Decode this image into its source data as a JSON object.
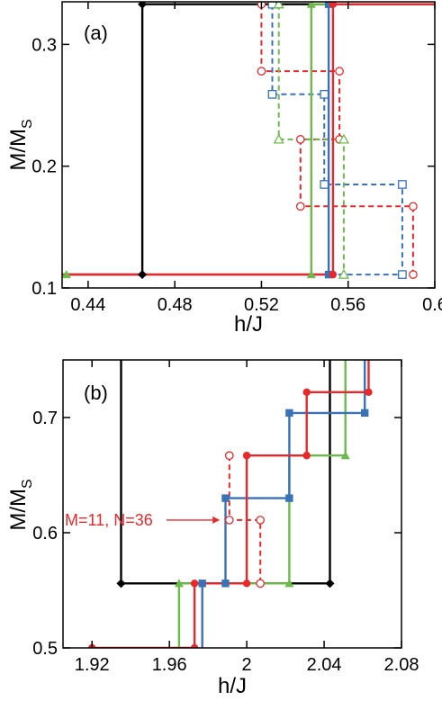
{
  "colors": {
    "black": "#000000",
    "red": "#e8282b",
    "green": "#6cba4a",
    "blue": "#3a72b8",
    "text": "#000000"
  },
  "chart_data": [
    {
      "type": "line",
      "panel_label": "(a)",
      "xlabel": "h/J",
      "ylabel": "M/M",
      "ylabel_sub": "S",
      "xlim": [
        0.428,
        0.6
      ],
      "ylim": [
        0.1,
        0.335
      ],
      "xticks": [
        0.44,
        0.48,
        0.52,
        0.56,
        0.6
      ],
      "xtick_labels": [
        "0.44",
        "0.48",
        "0.52",
        "0.56",
        "0.6"
      ],
      "yticks": [
        0.1,
        0.2,
        0.3
      ],
      "ytick_labels": [
        "0.1",
        "0.2",
        "0.3"
      ],
      "series": [
        {
          "color": "black",
          "dash": false,
          "marker": "diamond",
          "points": [
            [
              0.428,
              0.111
            ],
            [
              0.465,
              0.111
            ],
            [
              0.465,
              0.333
            ],
            [
              0.6,
              0.333
            ]
          ],
          "markers": [
            [
              0.465,
              0.111
            ],
            [
              0.465,
              0.333
            ]
          ]
        },
        {
          "color": "green",
          "dash": false,
          "marker": "triangle",
          "points": [
            [
              0.428,
              0.111
            ],
            [
              0.543,
              0.111
            ],
            [
              0.543,
              0.333
            ],
            [
              0.6,
              0.333
            ]
          ],
          "markers": [
            [
              0.43,
              0.111
            ],
            [
              0.543,
              0.111
            ],
            [
              0.543,
              0.333
            ]
          ]
        },
        {
          "color": "blue",
          "dash": false,
          "marker": "square",
          "points": [
            [
              0.428,
              0.111
            ],
            [
              0.551,
              0.111
            ],
            [
              0.551,
              0.333
            ],
            [
              0.6,
              0.333
            ]
          ],
          "markers": [
            [
              0.551,
              0.111
            ],
            [
              0.551,
              0.333
            ]
          ]
        },
        {
          "color": "red",
          "dash": false,
          "marker": "circle-filled",
          "points": [
            [
              0.428,
              0.111
            ],
            [
              0.553,
              0.111
            ],
            [
              0.553,
              0.333
            ],
            [
              0.6,
              0.333
            ]
          ],
          "markers": [
            [
              0.553,
              0.111
            ],
            [
              0.553,
              0.333
            ]
          ]
        },
        {
          "color": "red",
          "dash": true,
          "marker": "circle-open",
          "points": [
            [
              0.52,
              0.333
            ],
            [
              0.52,
              0.278
            ],
            [
              0.556,
              0.278
            ],
            [
              0.556,
              0.222
            ],
            [
              0.538,
              0.222
            ],
            [
              0.538,
              0.167
            ],
            [
              0.59,
              0.167
            ],
            [
              0.59,
              0.111
            ]
          ],
          "markers": [
            [
              0.52,
              0.333
            ],
            [
              0.52,
              0.278
            ],
            [
              0.556,
              0.278
            ],
            [
              0.556,
              0.222
            ],
            [
              0.538,
              0.222
            ],
            [
              0.538,
              0.167
            ],
            [
              0.59,
              0.167
            ],
            [
              0.59,
              0.111
            ]
          ]
        },
        {
          "color": "blue",
          "dash": true,
          "marker": "square-open",
          "points": [
            [
              0.525,
              0.333
            ],
            [
              0.525,
              0.259
            ],
            [
              0.549,
              0.259
            ],
            [
              0.549,
              0.185
            ],
            [
              0.585,
              0.185
            ],
            [
              0.585,
              0.111
            ],
            [
              0.553,
              0.111
            ]
          ],
          "markers": [
            [
              0.525,
              0.333
            ],
            [
              0.525,
              0.259
            ],
            [
              0.549,
              0.259
            ],
            [
              0.549,
              0.185
            ],
            [
              0.585,
              0.185
            ],
            [
              0.585,
              0.111
            ]
          ]
        },
        {
          "color": "green",
          "dash": true,
          "marker": "triangle-open",
          "points": [
            [
              0.528,
              0.333
            ],
            [
              0.528,
              0.222
            ],
            [
              0.558,
              0.222
            ],
            [
              0.558,
              0.111
            ]
          ],
          "markers": [
            [
              0.528,
              0.333
            ],
            [
              0.528,
              0.222
            ],
            [
              0.558,
              0.222
            ],
            [
              0.558,
              0.111
            ]
          ]
        }
      ]
    },
    {
      "type": "line",
      "panel_label": "(b)",
      "xlabel": "h/J",
      "ylabel": "M/M",
      "ylabel_sub": "S",
      "xlim": [
        1.905,
        2.08
      ],
      "ylim": [
        0.5,
        0.75
      ],
      "xticks": [
        1.92,
        1.96,
        2,
        2.04,
        2.08
      ],
      "xtick_labels": [
        "1.92",
        "1.96",
        "2",
        "2.04",
        "2.08"
      ],
      "yticks": [
        0.5,
        0.6,
        0.7
      ],
      "ytick_labels": [
        "0.5",
        "0.6",
        "0.7"
      ],
      "annotation": {
        "text": "M=11, N=36",
        "x": 1.905,
        "y": 0.611,
        "arrow_to": [
          1.987,
          0.611
        ]
      },
      "series": [
        {
          "color": "black",
          "dash": false,
          "marker": "diamond",
          "points": [
            [
              1.935,
              0.75
            ],
            [
              1.935,
              0.556
            ],
            [
              2.043,
              0.556
            ],
            [
              2.043,
              0.75
            ]
          ],
          "markers": [
            [
              1.935,
              0.556
            ],
            [
              2.043,
              0.556
            ]
          ]
        },
        {
          "color": "green",
          "dash": false,
          "marker": "triangle",
          "points": [
            [
              1.965,
              0.5
            ],
            [
              1.965,
              0.556
            ],
            [
              2.022,
              0.556
            ],
            [
              2.022,
              0.667
            ],
            [
              2.051,
              0.667
            ],
            [
              2.051,
              0.75
            ]
          ],
          "markers": [
            [
              1.965,
              0.556
            ],
            [
              2.022,
              0.556
            ],
            [
              2.051,
              0.667
            ]
          ]
        },
        {
          "color": "blue",
          "dash": false,
          "marker": "square",
          "points": [
            [
              1.977,
              0.5
            ],
            [
              1.977,
              0.556
            ],
            [
              1.989,
              0.556
            ],
            [
              1.989,
              0.63
            ],
            [
              2.022,
              0.63
            ],
            [
              2.022,
              0.704
            ],
            [
              2.061,
              0.704
            ],
            [
              2.061,
              0.75
            ]
          ],
          "markers": [
            [
              1.977,
              0.556
            ],
            [
              1.989,
              0.556
            ],
            [
              1.989,
              0.63
            ],
            [
              2.022,
              0.63
            ],
            [
              2.022,
              0.704
            ],
            [
              2.061,
              0.704
            ]
          ]
        },
        {
          "color": "red",
          "dash": false,
          "marker": "circle-filled",
          "points": [
            [
              1.92,
              0.5
            ],
            [
              1.973,
              0.5
            ],
            [
              1.973,
              0.556
            ],
            [
              2.0,
              0.556
            ],
            [
              2.0,
              0.667
            ],
            [
              2.031,
              0.667
            ],
            [
              2.031,
              0.722
            ],
            [
              2.063,
              0.722
            ],
            [
              2.063,
              0.75
            ]
          ],
          "markers": [
            [
              1.92,
              0.5
            ],
            [
              1.973,
              0.5
            ],
            [
              1.973,
              0.556
            ],
            [
              2.0,
              0.556
            ],
            [
              2.0,
              0.667
            ],
            [
              2.031,
              0.667
            ],
            [
              2.031,
              0.722
            ],
            [
              2.063,
              0.722
            ]
          ]
        },
        {
          "color": "red",
          "dash": true,
          "marker": "circle-open",
          "points": [
            [
              1.991,
              0.667
            ],
            [
              1.991,
              0.611
            ],
            [
              2.007,
              0.611
            ],
            [
              2.007,
              0.556
            ]
          ],
          "markers": [
            [
              1.991,
              0.667
            ],
            [
              1.991,
              0.611
            ],
            [
              2.007,
              0.611
            ],
            [
              2.007,
              0.556
            ]
          ]
        }
      ]
    }
  ]
}
